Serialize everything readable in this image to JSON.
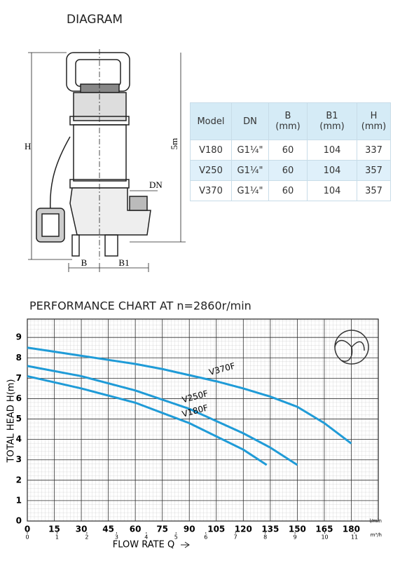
{
  "diagram": {
    "title": "DIAGRAM",
    "labels": {
      "h": "H",
      "height": "5m",
      "dn": "DN",
      "b": "B",
      "b1": "B1"
    }
  },
  "table": {
    "header": [
      "Model",
      "DN",
      "B (mm)",
      "B1 (mm)",
      "H (mm)"
    ],
    "rows": [
      [
        "V180",
        "G1¼\"",
        "60",
        "104",
        "337"
      ],
      [
        "V250",
        "G1¼\"",
        "60",
        "104",
        "357"
      ],
      [
        "V370",
        "G1¼\"",
        "60",
        "104",
        "357"
      ]
    ]
  },
  "chart_data": {
    "type": "line",
    "title": "PERFORMANCE CHART AT n=2860r/min",
    "xlabel": "FLOW RATE Q",
    "ylabel": "TOTAL HEAD H(m)",
    "xunit": "l/min",
    "x2unit": "m³/h",
    "xlim": [
      0,
      195
    ],
    "xticks": [
      0,
      15,
      30,
      45,
      60,
      75,
      90,
      105,
      120,
      135,
      150,
      165,
      180
    ],
    "x2lim": [
      0,
      11.8
    ],
    "x2ticks": [
      0,
      1,
      2,
      3,
      4,
      5,
      6,
      7,
      8,
      9,
      10,
      11
    ],
    "ylim": [
      0,
      9.9
    ],
    "yticks": [
      0,
      1,
      2,
      3,
      4,
      5,
      6,
      7,
      8,
      9
    ],
    "grid": true,
    "series": [
      {
        "name": "V370F",
        "color": "#1f9bd7",
        "x": [
          0,
          15,
          30,
          45,
          60,
          75,
          90,
          105,
          120,
          135,
          150,
          165,
          180
        ],
        "values": [
          8.5,
          8.3,
          8.1,
          7.9,
          7.7,
          7.45,
          7.15,
          6.85,
          6.5,
          6.1,
          5.6,
          4.8,
          3.8
        ]
      },
      {
        "name": "V250F",
        "color": "#1f9bd7",
        "x": [
          0,
          30,
          60,
          90,
          120,
          135,
          150
        ],
        "values": [
          7.6,
          7.1,
          6.4,
          5.5,
          4.3,
          3.6,
          2.75
        ]
      },
      {
        "name": "V180F",
        "color": "#1f9bd7",
        "x": [
          0,
          30,
          60,
          90,
          120,
          133
        ],
        "values": [
          7.1,
          6.5,
          5.8,
          4.8,
          3.5,
          2.75
        ]
      }
    ]
  }
}
